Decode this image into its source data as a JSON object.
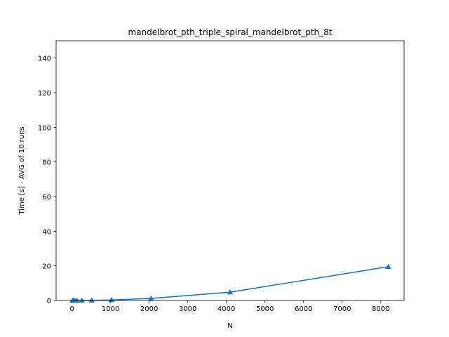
{
  "chart_data": {
    "type": "line",
    "title": "mandelbrot_pth_triple_spiral_mandelbrot_pth_8t",
    "xlabel": "N",
    "ylabel": "Time [s] - AVG of 10 runs",
    "xlim": [
      -410,
      8604
    ],
    "ylim": [
      0,
      150
    ],
    "xticks": [
      0,
      1000,
      2000,
      3000,
      4000,
      5000,
      6000,
      7000,
      8000
    ],
    "xtick_labels": [
      "0",
      "1000",
      "2000",
      "3000",
      "4000",
      "5000",
      "6000",
      "7000",
      "8000"
    ],
    "yticks": [
      0,
      20,
      40,
      60,
      80,
      100,
      120,
      140
    ],
    "ytick_labels": [
      "0",
      "20",
      "40",
      "60",
      "80",
      "100",
      "120",
      "140"
    ],
    "grid": false,
    "series": [
      {
        "marker": "triangle",
        "color": "#1f77b4",
        "x": [
          16,
          32,
          64,
          128,
          256,
          512,
          1024,
          2048,
          4096,
          8192
        ],
        "y": [
          0.005,
          0.01,
          0.02,
          0.03,
          0.05,
          0.1,
          0.3,
          1.2,
          4.8,
          19.5
        ]
      }
    ]
  }
}
